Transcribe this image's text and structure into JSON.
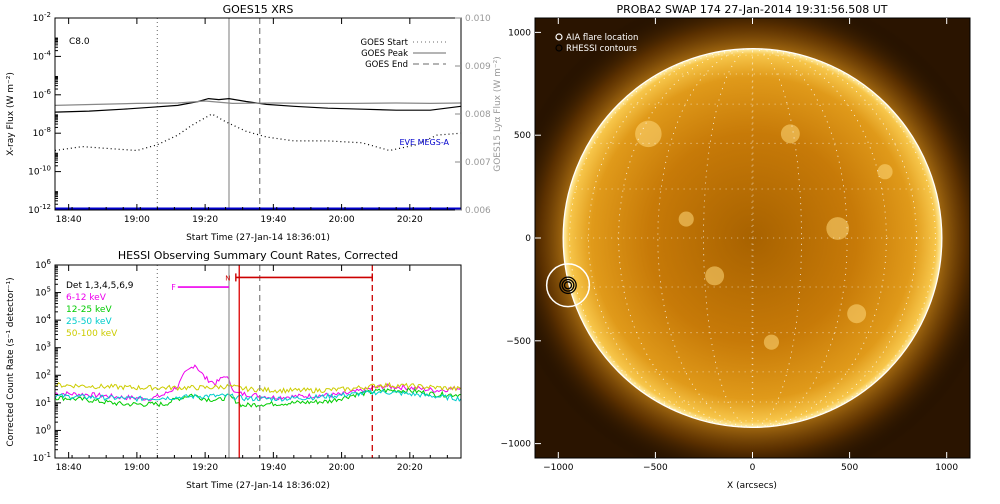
{
  "chart_data": [
    {
      "id": "xrs",
      "type": "line",
      "title": "GOES15 XRS",
      "xlabel": "Start Time (27-Jan-14 18:36:01)",
      "ylabel": "X-ray Flux (W m⁻²)",
      "y2label": "GOES15 Lyα Flux (W m⁻²)",
      "xlim": [
        0,
        119
      ],
      "ylim_log10": [
        -12,
        -2
      ],
      "y2lim": [
        0.006,
        0.01
      ],
      "xticks": [
        {
          "t": 4,
          "label": "18:40"
        },
        {
          "t": 24,
          "label": "19:00"
        },
        {
          "t": 44,
          "label": "19:20"
        },
        {
          "t": 64,
          "label": "19:40"
        },
        {
          "t": 84,
          "label": "20:00"
        },
        {
          "t": 104,
          "label": "20:20"
        }
      ],
      "yticks": [
        {
          "exp": -12,
          "label": "10",
          "sup": "-12"
        },
        {
          "exp": -10,
          "label": "10",
          "sup": "-10"
        },
        {
          "exp": -8,
          "label": "10",
          "sup": "-8"
        },
        {
          "exp": -6,
          "label": "10",
          "sup": "-6"
        },
        {
          "exp": -4,
          "label": "10",
          "sup": "-4"
        },
        {
          "exp": -2,
          "label": "10",
          "sup": "-2"
        }
      ],
      "y2ticks": [
        {
          "v": 0.006,
          "label": "0.006"
        },
        {
          "v": 0.007,
          "label": "0.007"
        },
        {
          "v": 0.008,
          "label": "0.008"
        },
        {
          "v": 0.009,
          "label": "0.009"
        },
        {
          "v": 0.01,
          "label": "0.010"
        }
      ],
      "annotation": "C8.0",
      "eve_label": "EVE MEGS-A",
      "legend": [
        {
          "name": "GOES Start",
          "dash": "dot"
        },
        {
          "name": "GOES Peak",
          "dash": "solid"
        },
        {
          "name": "GOES End",
          "dash": "dash"
        }
      ],
      "vlines": [
        {
          "t": 30,
          "dash": "dot",
          "color": "#888888"
        },
        {
          "t": 51,
          "dash": "solid",
          "color": "#999999"
        },
        {
          "t": 60,
          "dash": "dash",
          "color": "#888888"
        }
      ],
      "series": [
        {
          "axis": "y",
          "color": "#000000",
          "dash": "solid",
          "t": [
            0,
            10,
            20,
            28,
            36,
            42,
            45,
            48,
            51,
            56,
            62,
            70,
            80,
            90,
            100,
            110,
            119
          ],
          "log10": [
            -6.9,
            -6.85,
            -6.75,
            -6.65,
            -6.55,
            -6.35,
            -6.2,
            -6.25,
            -6.2,
            -6.35,
            -6.5,
            -6.6,
            -6.7,
            -6.75,
            -6.8,
            -6.8,
            -6.6
          ]
        },
        {
          "axis": "y",
          "color": "#000000",
          "dash": "dot",
          "t": [
            0,
            8,
            16,
            24,
            30,
            36,
            40,
            44,
            46,
            50,
            56,
            62,
            70,
            80,
            90,
            98,
            106,
            112,
            119
          ],
          "log10": [
            -8.9,
            -8.7,
            -8.8,
            -8.9,
            -8.6,
            -8.1,
            -7.6,
            -7.2,
            -7.0,
            -7.4,
            -7.9,
            -8.2,
            -8.4,
            -8.4,
            -8.5,
            -8.9,
            -8.6,
            -8.1,
            -8.0
          ]
        },
        {
          "axis": "y2",
          "color": "#888888",
          "dash": "solid",
          "t": [
            0,
            12,
            24,
            36,
            44,
            52,
            64,
            76,
            88,
            100,
            110,
            119
          ],
          "values": [
            0.00818,
            0.0082,
            0.00822,
            0.00823,
            0.00827,
            0.00822,
            0.00823,
            0.00822,
            0.00822,
            0.00823,
            0.00822,
            0.00823
          ]
        },
        {
          "axis": "y",
          "color": "#0000cc",
          "dash": "solid",
          "width": 3,
          "t": [
            0,
            119
          ],
          "log10": [
            -11.95,
            -11.95
          ]
        }
      ]
    },
    {
      "id": "hessi",
      "type": "line",
      "title": "HESSI Observing Summary Count Rates, Corrected",
      "xlabel": "Start Time (27-Jan-14 18:36:02)",
      "ylabel": "Corrected Count Rate (s⁻¹ detector⁻¹)",
      "xlim": [
        0,
        119
      ],
      "ylim_log10": [
        -1,
        6
      ],
      "xticks": [
        {
          "t": 4,
          "label": "18:40"
        },
        {
          "t": 24,
          "label": "19:00"
        },
        {
          "t": 44,
          "label": "19:20"
        },
        {
          "t": 64,
          "label": "19:40"
        },
        {
          "t": 84,
          "label": "20:00"
        },
        {
          "t": 104,
          "label": "20:20"
        }
      ],
      "yticks": [
        {
          "exp": -1,
          "label": "10",
          "sup": "-1"
        },
        {
          "exp": 0,
          "label": "10",
          "sup": "0"
        },
        {
          "exp": 1,
          "label": "10",
          "sup": "1"
        },
        {
          "exp": 2,
          "label": "10",
          "sup": "2"
        },
        {
          "exp": 3,
          "label": "10",
          "sup": "3"
        },
        {
          "exp": 4,
          "label": "10",
          "sup": "4"
        },
        {
          "exp": 5,
          "label": "10",
          "sup": "5"
        },
        {
          "exp": 6,
          "label": "10",
          "sup": "6"
        }
      ],
      "legend_title": "Det 1,3,4,5,6,9",
      "flag_f": "F",
      "flag_n": "N",
      "vlines": [
        {
          "t": 30,
          "dash": "dot",
          "color": "#888888"
        },
        {
          "t": 51,
          "dash": "solid",
          "color": "#999999"
        },
        {
          "t": 54,
          "dash": "solid",
          "color": "#dd0000"
        },
        {
          "t": 60,
          "dash": "dash",
          "color": "#888888"
        },
        {
          "t": 93,
          "dash": "dash",
          "color": "#cc0000"
        }
      ],
      "f_bar": {
        "t0": 36,
        "t1": 51,
        "log10": 5.2,
        "color": "#ee00ee"
      },
      "n_bar": {
        "t0": 53,
        "t1": 93,
        "log10": 5.55,
        "color": "#cc0000"
      },
      "series": [
        {
          "name": "6-12 keV",
          "color": "#ee00ee",
          "t": [
            0,
            10,
            20,
            28,
            32,
            36,
            38,
            41,
            44,
            47,
            50,
            53,
            57,
            64,
            74,
            84,
            90,
            96,
            104,
            112,
            119
          ],
          "log10": [
            1.35,
            1.3,
            1.2,
            1.15,
            1.3,
            1.6,
            2.05,
            2.4,
            1.9,
            1.7,
            2.0,
            1.35,
            1.3,
            1.2,
            1.25,
            1.3,
            1.45,
            1.6,
            1.55,
            1.45,
            1.55
          ]
        },
        {
          "name": "12-25 keV",
          "color": "#00cc00",
          "t": [
            0,
            10,
            20,
            28,
            32,
            36,
            40,
            44,
            48,
            51,
            55,
            60,
            70,
            80,
            88,
            96,
            104,
            112,
            119
          ],
          "log10": [
            1.2,
            1.1,
            0.95,
            0.95,
            0.95,
            1.15,
            1.3,
            1.15,
            1.1,
            1.25,
            0.9,
            0.95,
            1.0,
            1.05,
            1.3,
            1.45,
            1.45,
            1.3,
            1.3
          ]
        },
        {
          "name": "25-50 keV",
          "color": "#00cccc",
          "t": [
            0,
            12,
            24,
            36,
            44,
            51,
            56,
            66,
            76,
            86,
            96,
            106,
            119
          ],
          "log10": [
            1.25,
            1.2,
            1.15,
            1.2,
            1.25,
            1.25,
            1.15,
            1.15,
            1.2,
            1.3,
            1.4,
            1.3,
            1.15
          ]
        },
        {
          "name": "50-100 keV",
          "color": "#cccc00",
          "t": [
            0,
            12,
            24,
            36,
            44,
            51,
            56,
            66,
            76,
            86,
            96,
            106,
            119
          ],
          "log10": [
            1.65,
            1.6,
            1.55,
            1.55,
            1.55,
            1.6,
            1.5,
            1.45,
            1.45,
            1.5,
            1.65,
            1.6,
            1.5
          ]
        }
      ]
    },
    {
      "id": "swap",
      "type": "scatter",
      "title": "PROBA2 SWAP 174 27-Jan-2014 19:31:56.508 UT",
      "xlabel": "X (arcsecs)",
      "ylabel": "",
      "xlim": [
        -1120,
        1120
      ],
      "ylim": [
        -1070,
        1070
      ],
      "xticks": [
        -1000,
        -500,
        0,
        500,
        1000
      ],
      "yticks": [
        -1000,
        -500,
        0,
        500,
        1000
      ],
      "solar_radius": 975,
      "legend": [
        {
          "name": "AIA flare location",
          "symbol": "circle-white"
        },
        {
          "name": "RHESSI contours",
          "symbol": "circle-black"
        }
      ],
      "flare": {
        "x": -950,
        "y": -230,
        "circle_radius": 110
      },
      "rhessi_contours": [
        {
          "r": 18
        },
        {
          "r": 30
        },
        {
          "r": 42
        }
      ]
    }
  ]
}
